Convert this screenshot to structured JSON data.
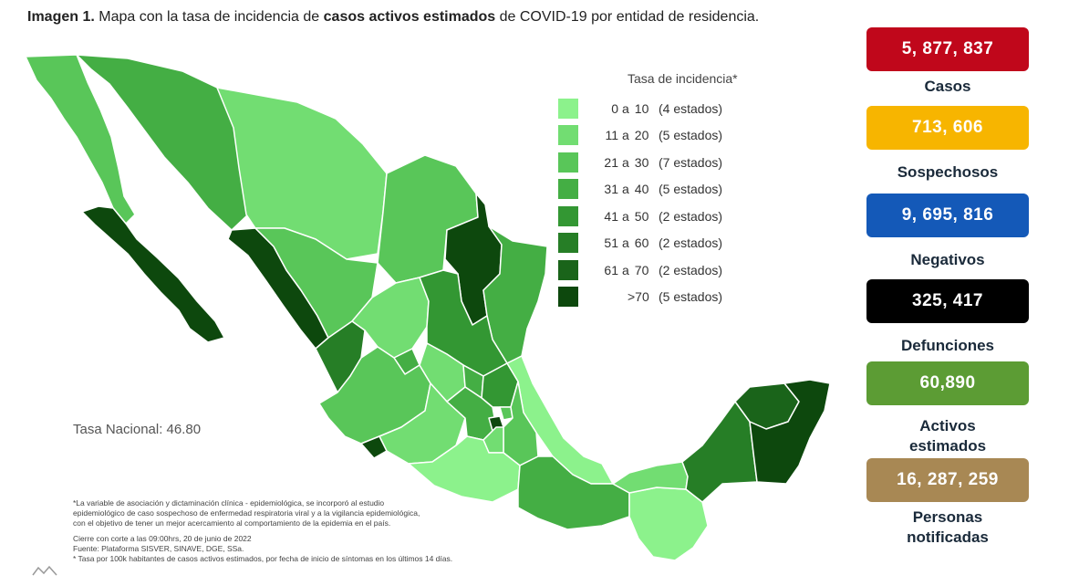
{
  "title": {
    "prefix": "Imagen 1.",
    "part1": " Mapa con la tasa de incidencia de ",
    "bold": "casos activos estimados",
    "part2": " de COVID-19 por entidad de residencia."
  },
  "legend": {
    "title": "Tasa de incidencia*",
    "items": [
      {
        "a": "0",
        "sep": "a",
        "b": "10",
        "count": "(4 estados)",
        "color": "#8cf28c"
      },
      {
        "a": "11",
        "sep": "a",
        "b": "20",
        "count": "(5 estados)",
        "color": "#72dd72"
      },
      {
        "a": "21",
        "sep": "a",
        "b": "30",
        "count": "(7 estados)",
        "color": "#59c659"
      },
      {
        "a": "31",
        "sep": "a",
        "b": "40",
        "count": "(5 estados)",
        "color": "#44ae44"
      },
      {
        "a": "41",
        "sep": "a",
        "b": "50",
        "count": "(2 estados)",
        "color": "#339733"
      },
      {
        "a": "51",
        "sep": "a",
        "b": "60",
        "count": "(2 estados)",
        "color": "#267e26"
      },
      {
        "a": "61",
        "sep": "a",
        "b": "70",
        "count": "(2 estados)",
        "color": "#1a641a"
      },
      {
        "a": "",
        "sep": "",
        "b": ">70",
        "count": "(5 estados)",
        "color": "#0d480d"
      }
    ]
  },
  "tasa_nacional": "Tasa Nacional: 46.80",
  "notes": {
    "n1": "*La variable de asociación y dictaminación clínica - epidemiológica, se incorporó al estudio",
    "n2": "epidemiológico de caso sospechoso de enfermedad respiratoria viral y a la vigilancia epidemiológica,",
    "n3": "con el objetivo de tener un mejor acercamiento al comportamiento de la epidemia en el país.",
    "n4": "Cierre con corte a las 09:00hrs, 20 de junio de 2022",
    "n5": "Fuente: Plataforma SISVER, SINAVE, DGE, SSa.",
    "n6": "* Tasa por 100k habitantes de casos activos estimados, por fecha de inicio de síntomas en los últimos 14 días."
  },
  "stats": [
    {
      "value": "5, 877, 837",
      "label": "Casos",
      "color": "#c0071b"
    },
    {
      "value": "713, 606",
      "label": "Sospechosos",
      "color": "#f7b500"
    },
    {
      "value": "9, 695, 816",
      "label": "Negativos",
      "color": "#1459b8"
    },
    {
      "value": "325, 417",
      "label": "Defunciones",
      "color": "#000000"
    },
    {
      "value": "60,890",
      "label": "Activos estimados",
      "color": "#5c9c34"
    },
    {
      "value": "16, 287, 259",
      "label": "Personas notificadas",
      "color": "#a88854"
    }
  ]
}
